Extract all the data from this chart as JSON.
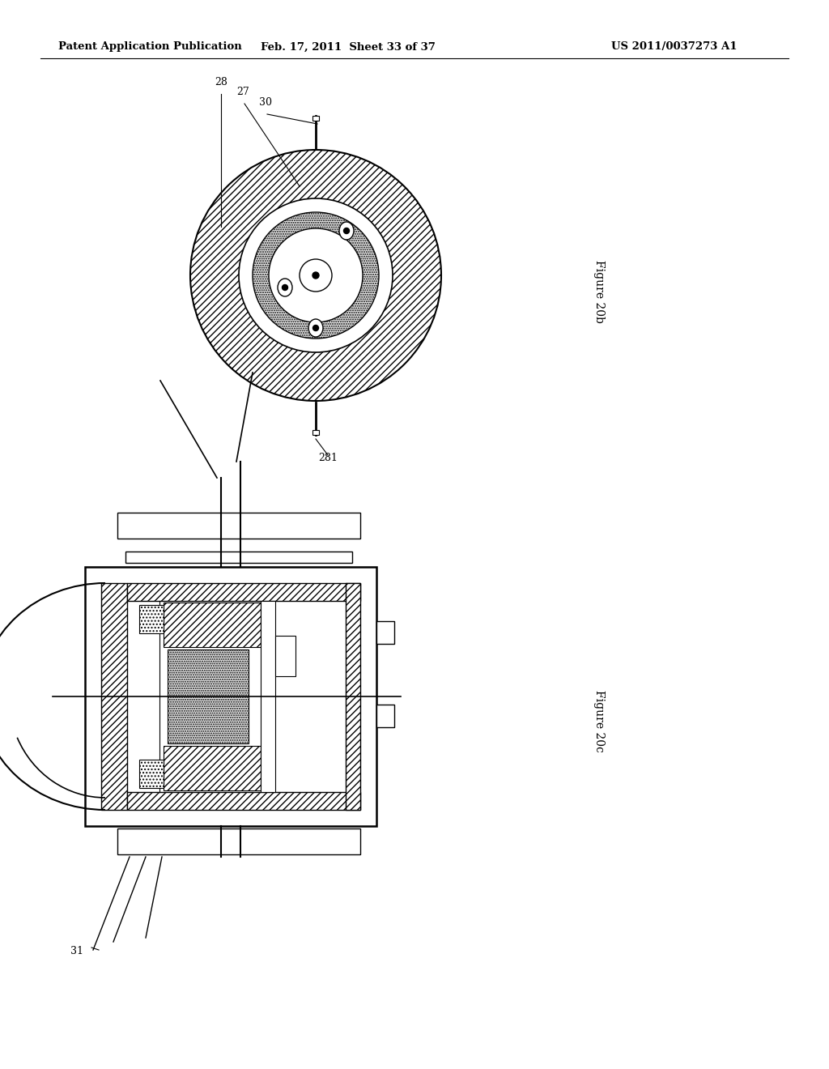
{
  "bg_color": "#ffffff",
  "header_left": "Patent Application Publication",
  "header_mid": "Feb. 17, 2011  Sheet 33 of 37",
  "header_right": "US 2011/0037273 A1",
  "fig_label_top": "Figure 20b",
  "fig_label_bottom": "Figure 20c",
  "label_28": "28",
  "label_27": "27",
  "label_30": "30",
  "label_281": "281",
  "label_31": "31"
}
